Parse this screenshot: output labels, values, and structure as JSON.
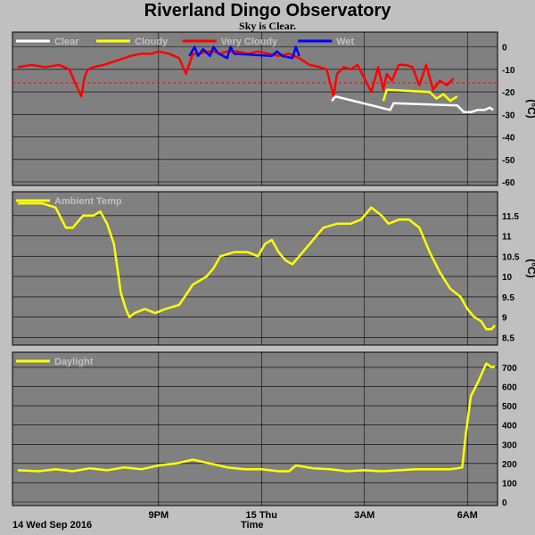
{
  "header": {
    "title": "Riverland Dingo Observatory",
    "subtitle": "Sky is Clear."
  },
  "footer": {
    "date": "14 Wed Sep 2016",
    "time_label": "Time"
  },
  "x_axis": {
    "range_hours": [
      16.9,
      30.8
    ],
    "ticks": [
      {
        "label": "9PM",
        "hour": 21
      },
      {
        "label": "15 Thu",
        "hour": 24
      },
      {
        "label": "3AM",
        "hour": 27
      },
      {
        "label": "6AM",
        "hour": 30
      }
    ]
  },
  "chart_data": [
    {
      "type": "line",
      "name": "sky",
      "unit": "(°C)",
      "ylim": [
        -60,
        5
      ],
      "yticks": [
        0,
        -10,
        -20,
        -30,
        -40,
        -50,
        -60
      ],
      "threshold": -16,
      "legend": [
        {
          "label": "Clear",
          "color": "#ffffff"
        },
        {
          "label": "Cloudy",
          "color": "#ffff00"
        },
        {
          "label": "Very Cloudy",
          "color": "#ff0000"
        },
        {
          "label": "Wet",
          "color": "#0000ff"
        }
      ],
      "series": [
        {
          "name": "Very Cloudy",
          "color": "#ff0000",
          "x": [
            16.9,
            17.3,
            17.7,
            18.1,
            18.4,
            18.6,
            18.75,
            18.85,
            18.95,
            19.1,
            19.4,
            19.8,
            20.2,
            20.5,
            20.8,
            21.0,
            21.3,
            21.6,
            21.8,
            22.0,
            22.2,
            22.4,
            22.6,
            22.8,
            23.0,
            23.3,
            23.6,
            23.9,
            24.2,
            24.5,
            24.8,
            25.1,
            25.4,
            25.7,
            25.9,
            26.0,
            26.1,
            26.2,
            26.4,
            26.6,
            26.8,
            27.0,
            27.2,
            27.4,
            27.55,
            27.65,
            27.8,
            28.0,
            28.2,
            28.4,
            28.6,
            28.8,
            29.0,
            29.2,
            29.4,
            29.6
          ],
          "values": [
            -9,
            -8,
            -9,
            -8,
            -10,
            -17,
            -22,
            -13,
            -10,
            -9,
            -8,
            -6,
            -4,
            -3,
            -3,
            -2,
            -3,
            -5,
            -12,
            -3,
            -3,
            -2,
            -2,
            -3,
            -2,
            -2,
            -3,
            -2,
            -3,
            -4,
            -3,
            -5,
            -8,
            -9,
            -10,
            -16,
            -22,
            -12,
            -9,
            -10,
            -8,
            -14,
            -20,
            -9,
            -19,
            -12,
            -15,
            -8,
            -8,
            -9,
            -17,
            -8,
            -19,
            -15,
            -17,
            -14
          ]
        },
        {
          "name": "Wet",
          "color": "#0000ff",
          "x": [
            21.9,
            22.05,
            22.15,
            22.3,
            22.5,
            22.6,
            22.75,
            23.0,
            23.1,
            23.2,
            24.3,
            24.45,
            24.6,
            24.9,
            25.0,
            25.1
          ],
          "values": [
            -4,
            0,
            -4,
            -1,
            -4,
            0,
            -3,
            -5,
            0,
            -3,
            -4,
            -2,
            -4,
            -5,
            0,
            -4
          ]
        },
        {
          "name": "Cloudy",
          "color": "#ffff00",
          "x": [
            27.55,
            27.65,
            28.9,
            29.1,
            29.3,
            29.5,
            29.7
          ],
          "values": [
            -24,
            -19,
            -20,
            -23,
            -21,
            -24,
            -22
          ]
        },
        {
          "name": "Clear",
          "color": "#ffffff",
          "x": [
            26.05,
            26.15,
            27.75,
            27.85,
            29.7,
            29.9,
            30.1,
            30.3,
            30.5,
            30.65,
            30.75
          ],
          "values": [
            -24,
            -22,
            -28,
            -25,
            -26,
            -29,
            -29,
            -28,
            -28,
            -27,
            -28
          ]
        }
      ]
    },
    {
      "type": "line",
      "name": "ambient",
      "unit": "(°C)",
      "ylim": [
        8.4,
        12.0
      ],
      "yticks": [
        8.5,
        9.0,
        9.5,
        10.0,
        10.5,
        11.0,
        11.5
      ],
      "legend": [
        {
          "label": "Ambient Temp",
          "color": "#ffff00"
        }
      ],
      "series": [
        {
          "name": "Ambient Temp",
          "color": "#ffff00",
          "x": [
            16.9,
            17.2,
            17.6,
            18.0,
            18.3,
            18.5,
            18.8,
            19.1,
            19.3,
            19.5,
            19.7,
            19.9,
            20.05,
            20.15,
            20.3,
            20.6,
            20.9,
            21.2,
            21.6,
            22.0,
            22.4,
            22.6,
            22.8,
            23.2,
            23.6,
            23.9,
            24.1,
            24.3,
            24.5,
            24.7,
            24.9,
            25.1,
            25.4,
            25.8,
            26.2,
            26.6,
            26.9,
            27.2,
            27.5,
            27.7,
            28.0,
            28.3,
            28.6,
            28.9,
            29.2,
            29.5,
            29.8,
            30.0,
            30.2,
            30.4,
            30.55,
            30.7,
            30.8
          ],
          "values": [
            11.8,
            11.8,
            11.8,
            11.7,
            11.2,
            11.2,
            11.5,
            11.5,
            11.6,
            11.3,
            10.8,
            9.6,
            9.2,
            9.0,
            9.1,
            9.2,
            9.1,
            9.2,
            9.3,
            9.8,
            10.0,
            10.2,
            10.5,
            10.6,
            10.6,
            10.5,
            10.8,
            10.9,
            10.6,
            10.4,
            10.3,
            10.5,
            10.8,
            11.2,
            11.3,
            11.3,
            11.4,
            11.7,
            11.5,
            11.3,
            11.4,
            11.4,
            11.2,
            10.6,
            10.1,
            9.7,
            9.5,
            9.2,
            9.0,
            8.9,
            8.7,
            8.7,
            8.8
          ]
        }
      ]
    },
    {
      "type": "line",
      "name": "daylight",
      "unit": "",
      "ylim": [
        0,
        760
      ],
      "yticks": [
        0,
        100,
        200,
        300,
        400,
        500,
        600,
        700
      ],
      "legend": [
        {
          "label": "Daylight",
          "color": "#ffff00"
        }
      ],
      "series": [
        {
          "name": "Daylight",
          "color": "#ffff00",
          "x": [
            16.9,
            17.5,
            18.0,
            18.5,
            19.0,
            19.5,
            20.0,
            20.5,
            21.0,
            21.5,
            22.0,
            22.5,
            23.0,
            23.5,
            24.0,
            24.5,
            24.8,
            25.0,
            25.5,
            26.0,
            26.5,
            27.0,
            27.5,
            28.0,
            28.5,
            29.0,
            29.5,
            29.7,
            29.85,
            29.95,
            30.1,
            30.3,
            30.45,
            30.55,
            30.7,
            30.8
          ],
          "values": [
            165,
            160,
            170,
            160,
            175,
            165,
            180,
            170,
            190,
            200,
            220,
            200,
            180,
            170,
            170,
            160,
            160,
            190,
            175,
            170,
            160,
            165,
            160,
            165,
            170,
            170,
            170,
            175,
            180,
            350,
            550,
            620,
            680,
            720,
            700,
            705
          ]
        }
      ]
    }
  ]
}
